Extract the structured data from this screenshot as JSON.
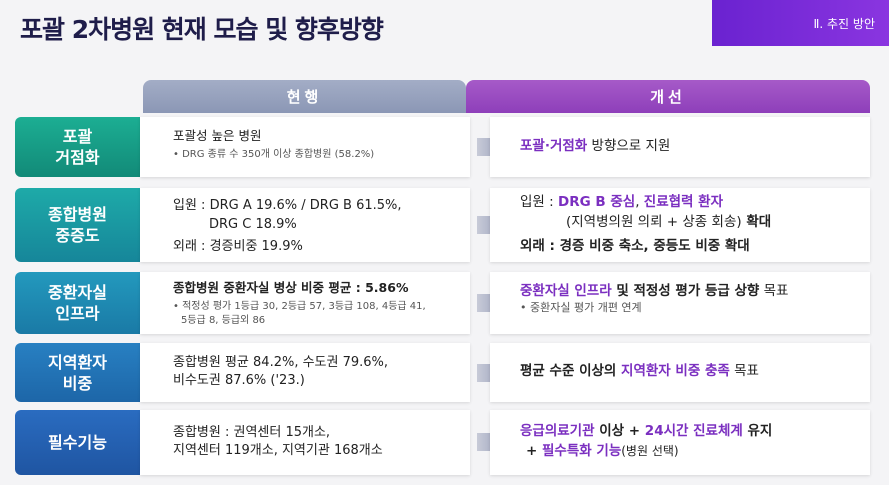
{
  "title": "포괄 2차병원 현재 모습 및 향후방향",
  "section_badge": "Ⅱ. 추진 방안",
  "headers": {
    "current": "현행",
    "improved": "개선"
  },
  "rows": [
    {
      "label": "포괄\n거점화",
      "current": {
        "main": "포괄성 높은 병원",
        "note": "• DRG 종류 수 350개 이상 종합병원 (58.2%)"
      },
      "improved": {
        "hl": "포괄·거점화",
        "text": " 방향으로 지원"
      }
    },
    {
      "label": "종합병원\n중증도",
      "current": {
        "line1": "입원 : DRG A 19.6% / DRG B 61.5%,",
        "line2": "DRG C 18.9%",
        "line3": "외래 : 경증비중 19.9%"
      },
      "improved": {
        "prefix": "입원 : ",
        "hl1": "DRG B 중심",
        "sep": ", ",
        "hl2": "진료협력 환자",
        "line2a": "(지역병의원 의뢰 + 상종 회송)",
        "line2b": " 확대",
        "line3": "외래 : 경증 비중 축소, 중등도 비중 확대"
      }
    },
    {
      "label": "중환자실\n인프라",
      "current": {
        "main": "종합병원 중환자실 병상 비중 평균 : 5.86%",
        "note1": "• 적정성 평가 1등급 30, 2등급 57, 3등급 108, 4등급 41,",
        "note2": "5등급 8, 등급외 86"
      },
      "improved": {
        "hl": "중환자실 인프라",
        "text": " 및 적정성 평가 등급 상향",
        "tail": " 목표",
        "note": "• 중환자실 평가 개편 연계"
      }
    },
    {
      "label": "지역환자\n비중",
      "current": {
        "line1": "종합병원 평균 84.2%, 수도권 79.6%,",
        "line2": "비수도권 87.6% ('23.)"
      },
      "improved": {
        "pre": "평균 수준 이상의 ",
        "hl": "지역환자 비중 충족",
        "tail": " 목표"
      }
    },
    {
      "label": "필수기능",
      "current": {
        "line1": "종합병원 : 권역센터 15개소,",
        "line2": "지역센터 119개소, 지역기관 168개소"
      },
      "improved": {
        "hl1": "응급의료기관",
        "t1": " 이상 + ",
        "hl2": "24시간 진료체계",
        "t2": " 유지",
        "t3": "+ ",
        "hl3": "필수특화 기능",
        "t4": "(병원 선택)"
      }
    }
  ],
  "colors": {
    "accent": "#7b2fc0",
    "badge": "#7a2fd6",
    "row_labels": [
      "#16a08a",
      "#1a9aa3",
      "#1f8db3",
      "#2479b9",
      "#2563b2"
    ]
  }
}
